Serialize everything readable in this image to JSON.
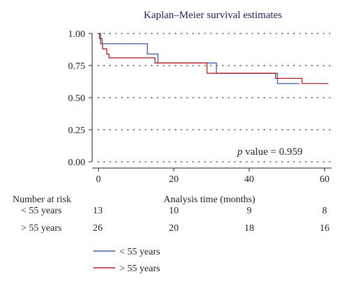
{
  "chart_data": {
    "type": "line",
    "title": "Kaplan–Meier survival estimates",
    "xlabel": "Analysis time (months)",
    "ylabel": "",
    "xlim": [
      0,
      62
    ],
    "ylim": [
      0,
      1
    ],
    "x_ticks": [
      0,
      20,
      40,
      60
    ],
    "y_ticks": [
      0.0,
      0.25,
      0.5,
      0.75,
      1.0
    ],
    "y_tick_labels": [
      "0.00",
      "0.25",
      "0.50",
      "0.75",
      "1.00"
    ],
    "grid": "horizontal-dotted",
    "step": true,
    "series": [
      {
        "name": "< 55 years",
        "color": "#3a5fb0",
        "x": [
          0,
          0.6,
          1.0,
          13.0,
          15.8,
          31.3,
          47.5,
          53.3
        ],
        "y": [
          1.0,
          0.96,
          0.92,
          0.84,
          0.77,
          0.69,
          0.61,
          0.61
        ]
      },
      {
        "name": "> 55 years",
        "color": "#b22222",
        "x": [
          0,
          0.3,
          0.6,
          1.1,
          2.2,
          2.8,
          3.3,
          15.0,
          28.8,
          47.0,
          54.0,
          61.0
        ],
        "y": [
          1.0,
          0.96,
          0.92,
          0.88,
          0.84,
          0.81,
          0.81,
          0.77,
          0.69,
          0.65,
          0.61,
          0.61
        ]
      }
    ],
    "annotation": {
      "italic": "p",
      "text": " value = 0.959"
    },
    "risk_table": {
      "header": "Number at risk",
      "times": [
        0,
        20,
        40,
        60
      ],
      "rows": [
        {
          "label": "< 55 years",
          "counts": [
            "13",
            "10",
            "9",
            "8"
          ]
        },
        {
          "label": "> 55 years",
          "counts": [
            "26",
            "20",
            "18",
            "16"
          ]
        }
      ]
    },
    "legend": {
      "placement": "bottom-left",
      "entries": [
        {
          "label": "< 55 years",
          "color": "#3a5fb0"
        },
        {
          "label": "> 55 years",
          "color": "#b22222"
        }
      ]
    }
  }
}
